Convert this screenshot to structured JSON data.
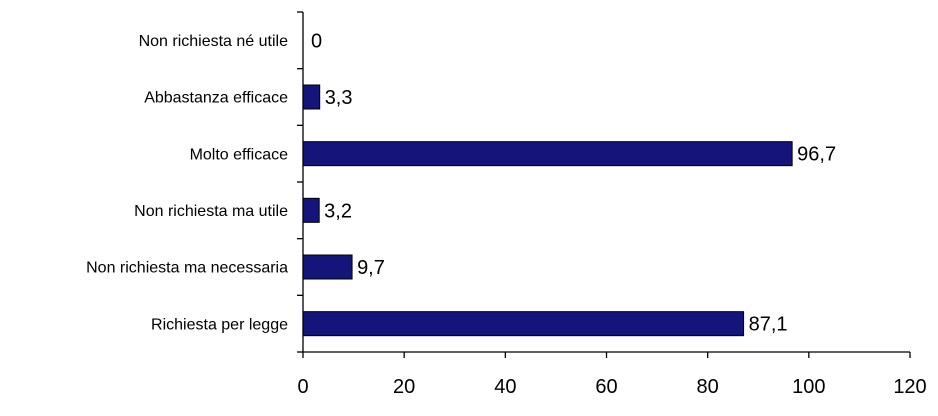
{
  "chart_data": {
    "type": "bar",
    "orientation": "horizontal",
    "categories": [
      "Non richiesta né utile",
      "Abbastanza efficace",
      "Molto efficace",
      "Non richiesta ma utile",
      "Non richiesta ma necessaria",
      "Richiesta per legge"
    ],
    "values": [
      0,
      3.3,
      96.7,
      3.2,
      9.7,
      87.1
    ],
    "value_labels": [
      "0",
      "3,3",
      "96,7",
      "3,2",
      "9,7",
      "87,1"
    ],
    "xlim": [
      0,
      120
    ],
    "x_ticks": [
      0,
      20,
      40,
      60,
      80,
      100,
      120
    ],
    "x_tick_labels": [
      "0",
      "20",
      "40",
      "60",
      "80",
      "100",
      "120"
    ],
    "title": "",
    "xlabel": "",
    "ylabel": "",
    "grid": false,
    "legend": "none",
    "colors": {
      "bar_fill": "#14147A",
      "bar_stroke": "#000000",
      "axis": "#000000",
      "text": "#000000"
    }
  }
}
